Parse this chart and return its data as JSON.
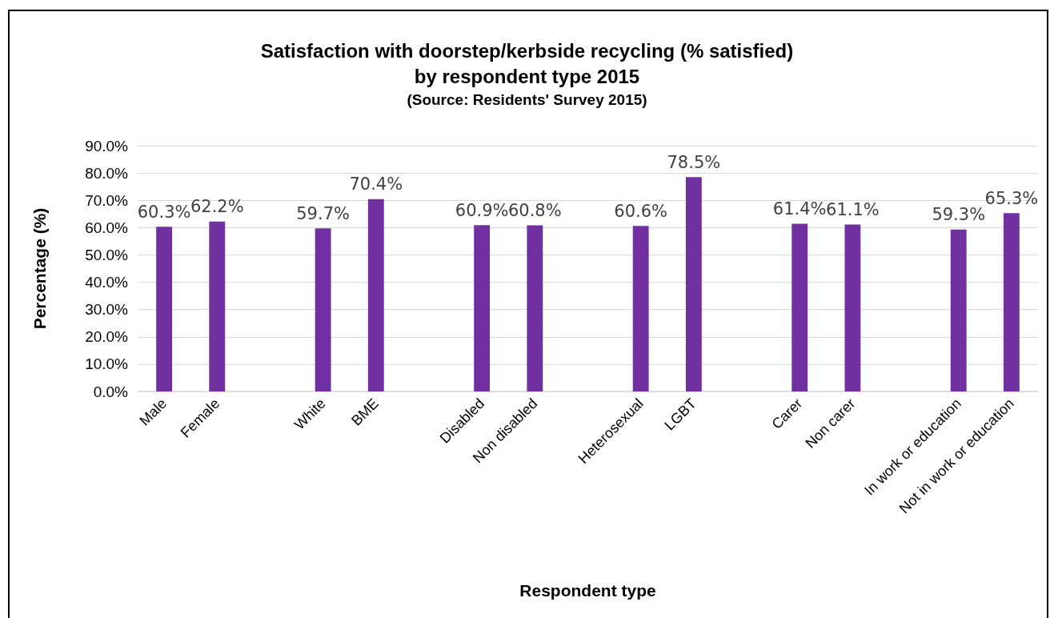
{
  "chart_data": {
    "type": "bar",
    "title": "Satisfaction with doorstep/kerbside recycling (% satisfied)\nby respondent type 2015",
    "subtitle": "(Source: Residents' Survey 2015)",
    "xlabel": "Respondent type",
    "ylabel": "Percentage (%)",
    "categories": [
      "Male",
      "Female",
      null,
      "White",
      "BME",
      null,
      "Disabled",
      "Non disabled",
      null,
      "Heterosexual",
      "LGBT",
      null,
      "Carer",
      "Non carer",
      null,
      "In work or education",
      "Not in work or education"
    ],
    "values": [
      60.3,
      62.2,
      null,
      59.7,
      70.4,
      null,
      60.9,
      60.8,
      null,
      60.6,
      78.5,
      null,
      61.4,
      61.1,
      null,
      59.3,
      65.3
    ],
    "value_labels": [
      "60.3%",
      "62.2%",
      null,
      "59.7%",
      "70.4%",
      null,
      "60.9%",
      "60.8%",
      null,
      "60.6%",
      "78.5%",
      null,
      "61.4%",
      "61.1%",
      null,
      "59.3%",
      "65.3%"
    ],
    "color": "#7030a0",
    "ylim": [
      0,
      90
    ],
    "yticks": [
      {
        "value": 0,
        "label": "0.0%"
      },
      {
        "value": 10,
        "label": "10.0%"
      },
      {
        "value": 20,
        "label": "20.0%"
      },
      {
        "value": 30,
        "label": "30.0%"
      },
      {
        "value": 40,
        "label": "40.0%"
      },
      {
        "value": 50,
        "label": "50.0%"
      },
      {
        "value": 60,
        "label": "60.0%"
      },
      {
        "value": 70,
        "label": "70.0%"
      },
      {
        "value": 80,
        "label": "80.0%"
      },
      {
        "value": 90,
        "label": "90.0%"
      }
    ],
    "grid": "y"
  }
}
